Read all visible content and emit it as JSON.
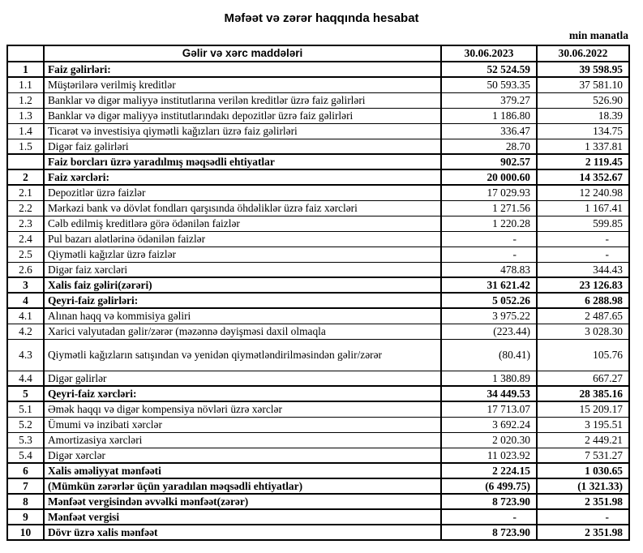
{
  "title": "Məfəət və zərər haqqında hesabat",
  "unit_note": "min manatla",
  "table": {
    "headers": {
      "items": "Gəlir və xərc maddələri",
      "col_2023": "30.06.2023",
      "col_2022": "30.06.2022"
    },
    "rows": [
      {
        "num": "1",
        "label": "Faiz gəlirləri:",
        "v2023": "52 524.59",
        "v2022": "39 598.95",
        "bold": true
      },
      {
        "num": "1.1",
        "label": "Müştərilərə verilmiş kreditlər",
        "v2023": "50 593.35",
        "v2022": "37 581.10"
      },
      {
        "num": "1.2",
        "label": "Banklar və digər maliyyə institutlarına verilən kreditlər üzrə faiz gəlirləri",
        "v2023": "379.27",
        "v2022": "526.90"
      },
      {
        "num": "1.3",
        "label": "Banklar və digər maliyyə institutlarındakı depozitlər üzrə faiz gəlirləri",
        "v2023": "1 186.80",
        "v2022": "18.39"
      },
      {
        "num": "1.4",
        "label": "Ticarət və investisiya qiymətli kağızları üzrə faiz gəlirləri",
        "v2023": "336.47",
        "v2022": "134.75"
      },
      {
        "num": "1.5",
        "label": "Digər faiz gəlirləri",
        "v2023": "28.70",
        "v2022": "1 337.81"
      },
      {
        "num": "",
        "label": "Faiz borcları üzrə yaradılmış məqsədli ehtiyatlar",
        "v2023": "902.57",
        "v2022": "2 119.45",
        "bold": true
      },
      {
        "num": "2",
        "label": "Faiz xərcləri:",
        "v2023": "20 000.60",
        "v2022": "14 352.67",
        "bold": true
      },
      {
        "num": "2.1",
        "label": "Depozitlər üzrə faizlər",
        "v2023": "17 029.93",
        "v2022": "12 240.98"
      },
      {
        "num": "2.2",
        "label": "Mərkəzi bank və dövlət fondları qarşısında öhdəliklər üzrə faiz xərcləri",
        "v2023": "1 271.56",
        "v2022": "1 167.41"
      },
      {
        "num": "2.3",
        "label": "Cəlb edilmiş kreditlərə görə ödənilən faizlər",
        "v2023": "1 220.28",
        "v2022": "599.85"
      },
      {
        "num": "2.4",
        "label": "Pul bazarı alətlərinə ödənilən faizlər",
        "v2023": "-",
        "v2022": "-"
      },
      {
        "num": "2.5",
        "label": "Qiymətli kağızlar üzrə faizlər",
        "v2023": "-",
        "v2022": "-"
      },
      {
        "num": "2.6",
        "label": "Digər faiz xərcləri",
        "v2023": "478.83",
        "v2022": "344.43"
      },
      {
        "num": "3",
        "label": "Xalis faiz gəliri(zərəri)",
        "v2023": "31 621.42",
        "v2022": "23 126.83",
        "bold": true
      },
      {
        "num": "4",
        "label": "Qeyri-faiz gəlirləri:",
        "v2023": "5 052.26",
        "v2022": "6 288.98",
        "bold": true
      },
      {
        "num": "4.1",
        "label": "Alınan haqq və kommisiya gəliri",
        "v2023": "3 975.22",
        "v2022": "2 487.65"
      },
      {
        "num": "4.2",
        "label": "Xarici valyutadan gəlir/zərər (məzənnə dəyişməsi daxil olmaqla",
        "v2023": "(223.44)",
        "v2022": "3 028.30"
      },
      {
        "num": "4.3",
        "label": "Qiymətli kağızların satışından və yenidən qiymətləndirilməsindən gəlir/zərər",
        "v2023": "(80.41)",
        "v2022": "105.76",
        "tall": true
      },
      {
        "num": "4.4",
        "label": "Digər gəlirlər",
        "v2023": "1 380.89",
        "v2022": "667.27"
      },
      {
        "num": "5",
        "label": "Qeyri-faiz xərcləri:",
        "v2023": "34 449.53",
        "v2022": "28 385.16",
        "bold": true
      },
      {
        "num": "5.1",
        "label": "Əmək haqqı və digər kompensiya növləri üzrə xərclər",
        "v2023": "17 713.07",
        "v2022": "15 209.17"
      },
      {
        "num": "5.2",
        "label": "Ümumi və inzibati xərclər",
        "v2023": "3 692.24",
        "v2022": "3 195.51"
      },
      {
        "num": "5.3",
        "label": "Amortizasiya xərcləri",
        "v2023": "2 020.30",
        "v2022": "2 449.21"
      },
      {
        "num": "5.4",
        "label": "Digər xərclər",
        "v2023": "11 023.92",
        "v2022": "7 531.27"
      },
      {
        "num": "6",
        "label": "Xalis əməliyyat mənfəəti",
        "v2023": "2 224.15",
        "v2022": "1 030.65",
        "bold": true
      },
      {
        "num": "7",
        "label": "(Mümkün zərərlər üçün yaradılan məqsədli ehtiyatlar)",
        "v2023": "(6 499.75)",
        "v2022": "(1 321.33)",
        "bold": true
      },
      {
        "num": "8",
        "label": "Mənfəət vergisindən əvvəlki mənfəət(zərər)",
        "v2023": "8 723.90",
        "v2022": "2 351.98",
        "bold": true
      },
      {
        "num": "9",
        "label": "Mənfəət vergisi",
        "v2023": "-",
        "v2022": "-",
        "bold": true
      },
      {
        "num": "10",
        "label": "Dövr üzrə xalis mənfəət",
        "v2023": "8 723.90",
        "v2022": "2 351.98",
        "bold": true
      }
    ]
  }
}
